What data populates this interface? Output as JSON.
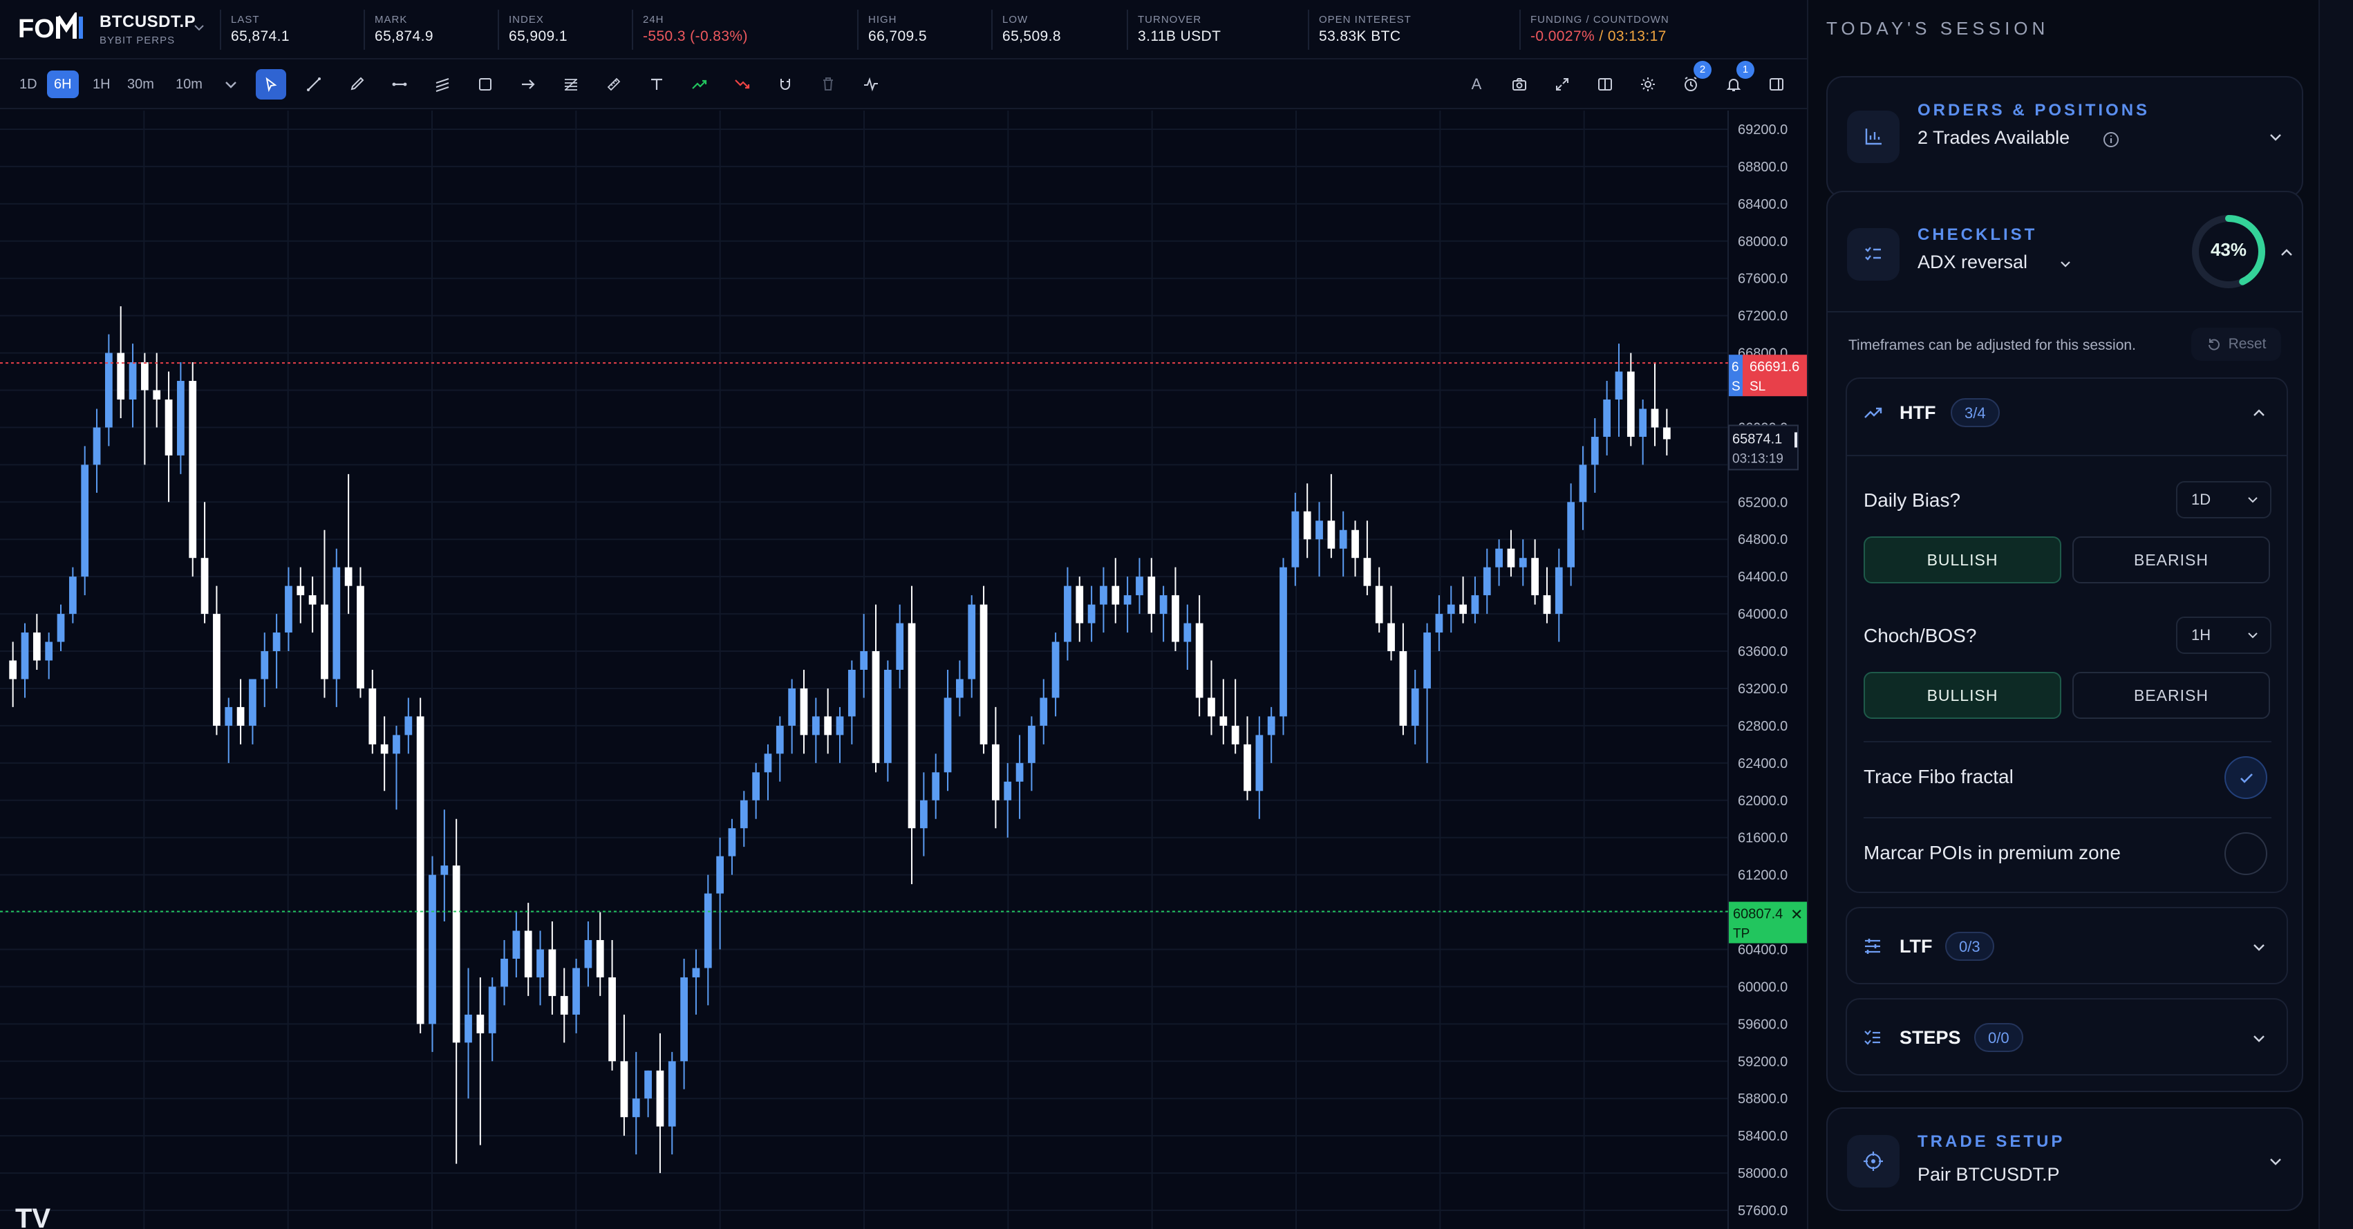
{
  "ticker": {
    "symbol": "BTCUSDT.P",
    "exchange": "BYBIT PERPS",
    "stats": [
      {
        "label": "LAST",
        "value": "65,874.1"
      },
      {
        "label": "MARK",
        "value": "65,874.9"
      },
      {
        "label": "INDEX",
        "value": "65,909.1"
      },
      {
        "label": "24H",
        "value": "-550.3 (-0.83%)"
      },
      {
        "label": "HIGH",
        "value": "66,709.5"
      },
      {
        "label": "LOW",
        "value": "65,509.8"
      },
      {
        "label": "TURNOVER",
        "value": "3.11B USDT"
      },
      {
        "label": "OPEN INTEREST",
        "value": "53.83K BTC"
      },
      {
        "label": "FUNDING / COUNTDOWN",
        "value": "-0.0027%",
        "value2": " / 03:13:17"
      }
    ]
  },
  "toolbar": {
    "timeframes": [
      "1D",
      "6H",
      "1H",
      "30m",
      "10m"
    ],
    "active_timeframe": "6H",
    "tools": [
      "cursor-icon",
      "trendline-icon",
      "brush-icon",
      "horizontal-ray-icon",
      "parallel-channel-icon",
      "rectangle-icon",
      "arrow-icon",
      "fib-icon",
      "ruler-icon",
      "text-icon",
      "long-position-icon",
      "short-position-icon",
      "magnet-icon",
      "trash-icon",
      "indicator-icon"
    ],
    "right_tools": [
      "font-icon",
      "camera-icon",
      "fullscreen-icon",
      "split-icon",
      "settings-icon",
      "alarm-icon",
      "bell-icon",
      "panel-icon"
    ],
    "text_tool_label": "A",
    "alarm_badge": "2",
    "bell_badge": "1"
  },
  "chart": {
    "price_axis": [
      "69200.0",
      "68800.0",
      "68400.0",
      "68000.0",
      "67600.0",
      "67200.0",
      "66800.0",
      "66400.0",
      "66000.0",
      "65600.0",
      "65200.0",
      "64800.0",
      "64400.0",
      "64000.0",
      "63600.0",
      "63200.0",
      "62800.0",
      "62400.0",
      "62000.0",
      "61600.0",
      "61200.0",
      "60800.0",
      "60400.0",
      "60000.0",
      "59600.0",
      "59200.0",
      "58800.0",
      "58400.0",
      "58000.0",
      "57600.0"
    ],
    "sl": {
      "price": "66691.6",
      "label": "SL",
      "prefix": "6",
      "tag": "S"
    },
    "tp": {
      "price": "60807.4",
      "label": "TP"
    },
    "last_price": "65874.1",
    "countdown": "03:13:19",
    "watermark": "TV",
    "colors": {
      "bull": "#5b9cf2",
      "bear": "#ffffff",
      "sl": "#e8404a",
      "tp": "#22c55e"
    }
  },
  "chart_data": {
    "type": "candlestick",
    "y_range": [
      57400,
      69400
    ],
    "candles": [
      [
        63500,
        63700,
        63000,
        63300
      ],
      [
        63300,
        63900,
        63100,
        63800
      ],
      [
        63800,
        64000,
        63400,
        63500
      ],
      [
        63500,
        63800,
        63300,
        63700
      ],
      [
        63700,
        64100,
        63600,
        64000
      ],
      [
        64000,
        64500,
        63900,
        64400
      ],
      [
        64400,
        65800,
        64200,
        65600
      ],
      [
        65600,
        66200,
        65300,
        66000
      ],
      [
        66000,
        67000,
        65800,
        66800
      ],
      [
        66800,
        67300,
        66100,
        66300
      ],
      [
        66300,
        66900,
        66000,
        66700
      ],
      [
        66700,
        66800,
        65600,
        66400
      ],
      [
        66400,
        66800,
        66000,
        66300
      ],
      [
        66300,
        66600,
        65200,
        65700
      ],
      [
        65700,
        66700,
        65500,
        66500
      ],
      [
        66500,
        66700,
        64400,
        64600
      ],
      [
        64600,
        65200,
        63900,
        64000
      ],
      [
        64000,
        64300,
        62700,
        62800
      ],
      [
        62800,
        63100,
        62400,
        63000
      ],
      [
        63000,
        63300,
        62600,
        62800
      ],
      [
        62800,
        63200,
        62600,
        63300
      ],
      [
        63300,
        63800,
        63000,
        63600
      ],
      [
        63600,
        64000,
        63200,
        63800
      ],
      [
        63800,
        64500,
        63600,
        64300
      ],
      [
        64300,
        64500,
        63900,
        64200
      ],
      [
        64200,
        64400,
        63800,
        64100
      ],
      [
        64100,
        64900,
        63100,
        63300
      ],
      [
        63300,
        64700,
        63000,
        64500
      ],
      [
        64500,
        65500,
        64000,
        64300
      ],
      [
        64300,
        64500,
        63100,
        63200
      ],
      [
        63200,
        63400,
        62500,
        62600
      ],
      [
        62600,
        62900,
        62100,
        62500
      ],
      [
        62500,
        62800,
        61900,
        62700
      ],
      [
        62700,
        63100,
        62500,
        62900
      ],
      [
        62900,
        63100,
        59500,
        59600
      ],
      [
        59600,
        61400,
        59300,
        61200
      ],
      [
        61200,
        61900,
        60700,
        61300
      ],
      [
        61300,
        61800,
        58100,
        59400
      ],
      [
        59400,
        60200,
        58800,
        59700
      ],
      [
        59700,
        60100,
        58300,
        59500
      ],
      [
        59500,
        60100,
        59200,
        60000
      ],
      [
        60000,
        60500,
        59800,
        60300
      ],
      [
        60300,
        60800,
        60100,
        60600
      ],
      [
        60600,
        60900,
        59900,
        60100
      ],
      [
        60100,
        60600,
        59800,
        60400
      ],
      [
        60400,
        60700,
        59700,
        59900
      ],
      [
        59900,
        60200,
        59400,
        59700
      ],
      [
        59700,
        60300,
        59500,
        60200
      ],
      [
        60200,
        60700,
        60000,
        60500
      ],
      [
        60500,
        60800,
        59900,
        60100
      ],
      [
        60100,
        60500,
        59100,
        59200
      ],
      [
        59200,
        59700,
        58400,
        58600
      ],
      [
        58600,
        59300,
        58200,
        58800
      ],
      [
        58800,
        59100,
        58600,
        59100
      ],
      [
        59100,
        59500,
        58000,
        58500
      ],
      [
        58500,
        59300,
        58200,
        59200
      ],
      [
        59200,
        60300,
        58900,
        60100
      ],
      [
        60100,
        60400,
        59700,
        60200
      ],
      [
        60200,
        61200,
        59800,
        61000
      ],
      [
        61000,
        61600,
        60400,
        61400
      ],
      [
        61400,
        61800,
        61200,
        61700
      ],
      [
        61700,
        62100,
        61500,
        62000
      ],
      [
        62000,
        62400,
        61800,
        62300
      ],
      [
        62300,
        62600,
        62000,
        62500
      ],
      [
        62500,
        62900,
        62200,
        62800
      ],
      [
        62800,
        63300,
        62500,
        63200
      ],
      [
        63200,
        63400,
        62500,
        62700
      ],
      [
        62700,
        63100,
        62400,
        62900
      ],
      [
        62900,
        63200,
        62500,
        62700
      ],
      [
        62700,
        63000,
        62400,
        62900
      ],
      [
        62900,
        63500,
        62600,
        63400
      ],
      [
        63400,
        64000,
        63100,
        63600
      ],
      [
        63600,
        64100,
        62300,
        62400
      ],
      [
        62400,
        63500,
        62200,
        63400
      ],
      [
        63400,
        64100,
        63200,
        63900
      ],
      [
        63900,
        64300,
        61100,
        61700
      ],
      [
        61700,
        62300,
        61400,
        62000
      ],
      [
        62000,
        62500,
        61800,
        62300
      ],
      [
        62300,
        63400,
        62100,
        63100
      ],
      [
        63100,
        63500,
        62900,
        63300
      ],
      [
        63300,
        64200,
        63100,
        64100
      ],
      [
        64100,
        64300,
        62500,
        62600
      ],
      [
        62600,
        63000,
        61700,
        62000
      ],
      [
        62000,
        62400,
        61600,
        62200
      ],
      [
        62200,
        62700,
        61800,
        62400
      ],
      [
        62400,
        62900,
        62100,
        62800
      ],
      [
        62800,
        63300,
        62600,
        63100
      ],
      [
        63100,
        63800,
        62900,
        63700
      ],
      [
        63700,
        64500,
        63500,
        64300
      ],
      [
        64300,
        64400,
        63700,
        63900
      ],
      [
        63900,
        64300,
        63700,
        64100
      ],
      [
        64100,
        64500,
        63800,
        64300
      ],
      [
        64300,
        64600,
        63900,
        64100
      ],
      [
        64100,
        64400,
        63800,
        64200
      ],
      [
        64200,
        64600,
        64000,
        64400
      ],
      [
        64400,
        64600,
        63800,
        64000
      ],
      [
        64000,
        64300,
        63700,
        64200
      ],
      [
        64200,
        64500,
        63600,
        63700
      ],
      [
        63700,
        64100,
        63400,
        63900
      ],
      [
        63900,
        64200,
        62900,
        63100
      ],
      [
        63100,
        63500,
        62700,
        62900
      ],
      [
        62900,
        63300,
        62600,
        62800
      ],
      [
        62800,
        63300,
        62500,
        62600
      ],
      [
        62600,
        62900,
        62000,
        62100
      ],
      [
        62100,
        62900,
        61800,
        62700
      ],
      [
        62700,
        63000,
        62400,
        62900
      ],
      [
        62900,
        64600,
        62700,
        64500
      ],
      [
        64500,
        65300,
        64300,
        65100
      ],
      [
        65100,
        65400,
        64600,
        64800
      ],
      [
        64800,
        65200,
        64400,
        65000
      ],
      [
        65000,
        65500,
        64600,
        64700
      ],
      [
        64700,
        65100,
        64400,
        64900
      ],
      [
        64900,
        65000,
        64400,
        64600
      ],
      [
        64600,
        65000,
        64200,
        64300
      ],
      [
        64300,
        64500,
        63800,
        63900
      ],
      [
        63900,
        64300,
        63500,
        63600
      ],
      [
        63600,
        63900,
        62700,
        62800
      ],
      [
        62800,
        63400,
        62600,
        63200
      ],
      [
        63200,
        63900,
        62400,
        63800
      ],
      [
        63800,
        64200,
        63600,
        64000
      ],
      [
        64000,
        64300,
        63800,
        64100
      ],
      [
        64100,
        64400,
        63900,
        64000
      ],
      [
        64000,
        64400,
        63900,
        64200
      ],
      [
        64200,
        64700,
        64000,
        64500
      ],
      [
        64500,
        64800,
        64300,
        64700
      ],
      [
        64700,
        64900,
        64400,
        64500
      ],
      [
        64500,
        64800,
        64300,
        64600
      ],
      [
        64600,
        64800,
        64100,
        64200
      ],
      [
        64200,
        64500,
        63900,
        64000
      ],
      [
        64000,
        64700,
        63700,
        64500
      ],
      [
        64500,
        65400,
        64300,
        65200
      ],
      [
        65200,
        65800,
        64900,
        65600
      ],
      [
        65600,
        66100,
        65300,
        65900
      ],
      [
        65900,
        66500,
        65700,
        66300
      ],
      [
        66300,
        66900,
        65900,
        66600
      ],
      [
        66600,
        66800,
        65800,
        65900
      ],
      [
        65900,
        66300,
        65600,
        66200
      ],
      [
        66200,
        66700,
        65800,
        66000
      ],
      [
        66000,
        66200,
        65700,
        65874.1
      ]
    ]
  },
  "panel": {
    "title": "TODAY'S SESSION",
    "orders": {
      "title": "ORDERS & POSITIONS",
      "sub": "2 Trades Available",
      "info_icon": "info-icon"
    },
    "checklist": {
      "title": "CHECKLIST",
      "sub": "ADX reversal",
      "progress_text": "43%",
      "progress_value": 0.43,
      "note": "Timeframes can be adjusted for this session.",
      "reset_label": "Reset",
      "htf": {
        "title": "HTF",
        "count": "3/4",
        "daily_bias_label": "Daily Bias?",
        "daily_bias_tf": "1D",
        "daily_bias_bull": "BULLISH",
        "daily_bias_bear": "BEARISH",
        "choch_label": "Choch/BOS?",
        "choch_tf": "1H",
        "choch_bull": "BULLISH",
        "choch_bear": "BEARISH",
        "item1": "Trace Fibo fractal",
        "item2": "Marcar POIs in premium zone"
      },
      "ltf": {
        "title": "LTF",
        "count": "0/3"
      },
      "steps": {
        "title": "STEPS",
        "count": "0/0"
      }
    },
    "trade_setup": {
      "title": "TRADE SETUP",
      "sub": "Pair BTCUSDT.P"
    }
  }
}
